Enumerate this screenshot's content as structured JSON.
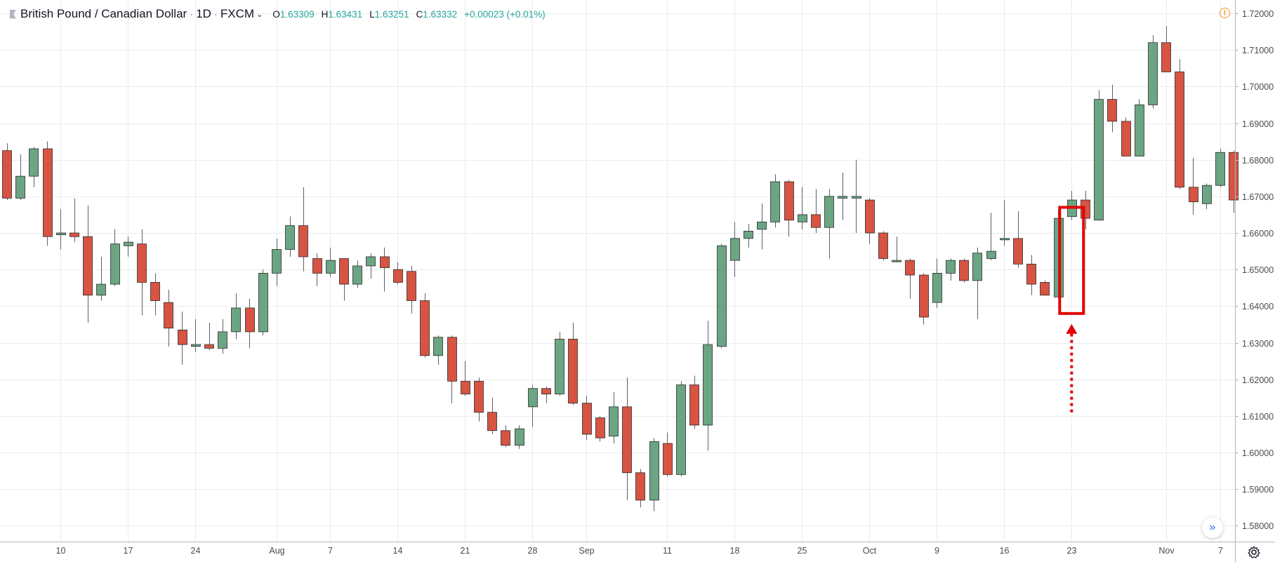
{
  "header": {
    "symbol_title": "British Pound / Canadian Dollar",
    "timeframe": "1D",
    "source": "FXCM",
    "ohlc": {
      "open_label": "O",
      "open": "1.63309",
      "high_label": "H",
      "high": "1.63431",
      "low_label": "L",
      "low": "1.63251",
      "close_label": "C",
      "close": "1.63332",
      "change": "+0.00023 (+0.01%)"
    }
  },
  "icons": {
    "flag": "symbol-flag-icon",
    "caret": "chevron-down-icon",
    "warning": "warning-icon",
    "scroll": "scroll-to-realtime-icon",
    "settings": "gear-icon"
  },
  "colors": {
    "up": "#6ba583",
    "down": "#d75442",
    "highlight": "#e30000",
    "grid": "#e9ebee",
    "axis_text": "#4a4a4a"
  },
  "chart_data": {
    "type": "candlestick",
    "title": "British Pound / Canadian Dollar · 1D · FXCM",
    "ylim": [
      1.5745,
      1.7225
    ],
    "y_ticks": [
      "1.72000",
      "1.71000",
      "1.70000",
      "1.69000",
      "1.68000",
      "1.67000",
      "1.66000",
      "1.65000",
      "1.64000",
      "1.63000",
      "1.62000",
      "1.61000",
      "1.60000",
      "1.59000",
      "1.58000"
    ],
    "x_ticks": [
      {
        "label": "10",
        "bar": 4
      },
      {
        "label": "17",
        "bar": 9
      },
      {
        "label": "24",
        "bar": 14
      },
      {
        "label": "Aug",
        "bar": 20
      },
      {
        "label": "7",
        "bar": 24
      },
      {
        "label": "14",
        "bar": 29
      },
      {
        "label": "21",
        "bar": 34
      },
      {
        "label": "28",
        "bar": 39
      },
      {
        "label": "Sep",
        "bar": 43
      },
      {
        "label": "11",
        "bar": 49
      },
      {
        "label": "18",
        "bar": 54
      },
      {
        "label": "25",
        "bar": 59
      },
      {
        "label": "Oct",
        "bar": 64
      },
      {
        "label": "9",
        "bar": 69
      },
      {
        "label": "16",
        "bar": 74
      },
      {
        "label": "23",
        "bar": 79
      },
      {
        "label": "Nov",
        "bar": 86
      },
      {
        "label": "7",
        "bar": 90
      }
    ],
    "ohlc": [
      [
        1.6825,
        1.6845,
        1.669,
        1.6695
      ],
      [
        1.6695,
        1.6815,
        1.669,
        1.6755
      ],
      [
        1.6755,
        1.6835,
        1.6725,
        1.683
      ],
      [
        1.683,
        1.685,
        1.6565,
        1.659
      ],
      [
        1.6595,
        1.6665,
        1.6555,
        1.66
      ],
      [
        1.66,
        1.6695,
        1.6575,
        1.659
      ],
      [
        1.659,
        1.6675,
        1.6355,
        1.643
      ],
      [
        1.643,
        1.6535,
        1.6415,
        1.646
      ],
      [
        1.646,
        1.661,
        1.6455,
        1.657
      ],
      [
        1.6565,
        1.659,
        1.6535,
        1.6575
      ],
      [
        1.657,
        1.661,
        1.6375,
        1.6465
      ],
      [
        1.6465,
        1.649,
        1.6375,
        1.6415
      ],
      [
        1.641,
        1.6445,
        1.629,
        1.634
      ],
      [
        1.6335,
        1.6385,
        1.624,
        1.6295
      ],
      [
        1.629,
        1.6365,
        1.6275,
        1.6295
      ],
      [
        1.6295,
        1.6355,
        1.628,
        1.6285
      ],
      [
        1.6285,
        1.6365,
        1.627,
        1.633
      ],
      [
        1.633,
        1.6435,
        1.631,
        1.6395
      ],
      [
        1.6395,
        1.642,
        1.6285,
        1.633
      ],
      [
        1.633,
        1.65,
        1.632,
        1.649
      ],
      [
        1.649,
        1.6585,
        1.6455,
        1.6555
      ],
      [
        1.6555,
        1.6645,
        1.6535,
        1.662
      ],
      [
        1.662,
        1.6725,
        1.6495,
        1.6535
      ],
      [
        1.653,
        1.6545,
        1.6455,
        1.649
      ],
      [
        1.649,
        1.656,
        1.648,
        1.6525
      ],
      [
        1.653,
        1.653,
        1.6415,
        1.646
      ],
      [
        1.646,
        1.6525,
        1.645,
        1.651
      ],
      [
        1.651,
        1.6545,
        1.6475,
        1.6535
      ],
      [
        1.6535,
        1.656,
        1.644,
        1.6505
      ],
      [
        1.65,
        1.652,
        1.646,
        1.6465
      ],
      [
        1.6495,
        1.651,
        1.638,
        1.6415
      ],
      [
        1.6415,
        1.6435,
        1.626,
        1.6265
      ],
      [
        1.6265,
        1.632,
        1.624,
        1.6315
      ],
      [
        1.6315,
        1.632,
        1.6135,
        1.6195
      ],
      [
        1.6195,
        1.625,
        1.6155,
        1.616
      ],
      [
        1.6195,
        1.6205,
        1.6085,
        1.611
      ],
      [
        1.611,
        1.615,
        1.605,
        1.606
      ],
      [
        1.606,
        1.6075,
        1.6015,
        1.602
      ],
      [
        1.602,
        1.6075,
        1.601,
        1.6065
      ],
      [
        1.6125,
        1.6185,
        1.607,
        1.6175
      ],
      [
        1.6175,
        1.618,
        1.6135,
        1.616
      ],
      [
        1.616,
        1.633,
        1.6155,
        1.631
      ],
      [
        1.631,
        1.6355,
        1.613,
        1.6135
      ],
      [
        1.6135,
        1.6155,
        1.6035,
        1.605
      ],
      [
        1.6095,
        1.61,
        1.603,
        1.604
      ],
      [
        1.6045,
        1.6165,
        1.6025,
        1.6125
      ],
      [
        1.6125,
        1.6205,
        1.587,
        1.5945
      ],
      [
        1.5945,
        1.5955,
        1.585,
        1.587
      ],
      [
        1.587,
        1.604,
        1.584,
        1.603
      ],
      [
        1.6025,
        1.6055,
        1.5935,
        1.594
      ],
      [
        1.594,
        1.6195,
        1.5935,
        1.6185
      ],
      [
        1.6185,
        1.621,
        1.6065,
        1.6075
      ],
      [
        1.6075,
        1.636,
        1.6005,
        1.6295
      ],
      [
        1.629,
        1.657,
        1.6285,
        1.6565
      ],
      [
        1.6525,
        1.663,
        1.648,
        1.6585
      ],
      [
        1.6585,
        1.6625,
        1.656,
        1.6605
      ],
      [
        1.661,
        1.668,
        1.6555,
        1.663
      ],
      [
        1.663,
        1.676,
        1.6615,
        1.674
      ],
      [
        1.674,
        1.6745,
        1.659,
        1.6635
      ],
      [
        1.663,
        1.6725,
        1.661,
        1.665
      ],
      [
        1.665,
        1.672,
        1.66,
        1.6615
      ],
      [
        1.6615,
        1.672,
        1.653,
        1.67
      ],
      [
        1.6695,
        1.6765,
        1.6635,
        1.67
      ],
      [
        1.6695,
        1.68,
        1.66,
        1.67
      ],
      [
        1.669,
        1.6695,
        1.657,
        1.66
      ],
      [
        1.66,
        1.6605,
        1.6525,
        1.653
      ],
      [
        1.6525,
        1.659,
        1.652,
        1.6525
      ],
      [
        1.6525,
        1.653,
        1.642,
        1.6485
      ],
      [
        1.6485,
        1.649,
        1.635,
        1.637
      ],
      [
        1.641,
        1.653,
        1.6395,
        1.649
      ],
      [
        1.649,
        1.653,
        1.647,
        1.6525
      ],
      [
        1.6525,
        1.653,
        1.6465,
        1.647
      ],
      [
        1.647,
        1.656,
        1.6365,
        1.6545
      ],
      [
        1.653,
        1.6655,
        1.6525,
        1.655
      ],
      [
        1.6585,
        1.669,
        1.6565,
        1.6585
      ],
      [
        1.6585,
        1.666,
        1.6505,
        1.6515
      ],
      [
        1.6515,
        1.654,
        1.643,
        1.646
      ],
      [
        1.6465,
        1.647,
        1.643,
        1.643
      ],
      [
        1.6425,
        1.6665,
        1.6425,
        1.664
      ],
      [
        1.6645,
        1.6715,
        1.6635,
        1.669
      ],
      [
        1.669,
        1.6715,
        1.661,
        1.664
      ],
      [
        1.6635,
        1.699,
        1.6635,
        1.6965
      ],
      [
        1.6965,
        1.7005,
        1.6875,
        1.6905
      ],
      [
        1.6905,
        1.6915,
        1.681,
        1.681
      ],
      [
        1.681,
        1.6965,
        1.681,
        1.695
      ],
      [
        1.695,
        1.714,
        1.694,
        1.712
      ],
      [
        1.712,
        1.7165,
        1.704,
        1.704
      ],
      [
        1.704,
        1.7075,
        1.672,
        1.6725
      ],
      [
        1.6725,
        1.6805,
        1.665,
        1.6685
      ],
      [
        1.668,
        1.6735,
        1.6665,
        1.673
      ],
      [
        1.673,
        1.683,
        1.6725,
        1.682
      ],
      [
        1.682,
        1.6825,
        1.6655,
        1.669
      ]
    ],
    "annotations": [
      {
        "type": "highlight-box",
        "bar_from": 79,
        "bar_to": 79,
        "y_from": 1.638,
        "y_to": 1.667
      },
      {
        "type": "dotted-arrow",
        "bar": 79,
        "y_from": 1.611,
        "y_to": 1.638
      }
    ],
    "grid": true
  }
}
